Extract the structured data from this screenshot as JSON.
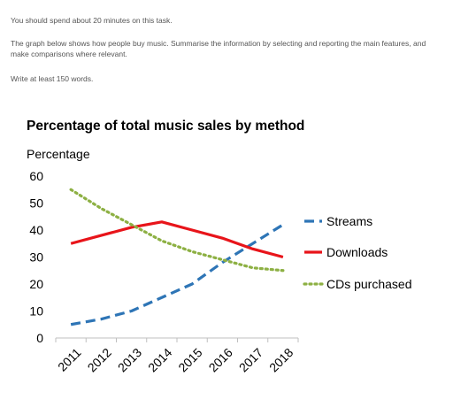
{
  "instructions": {
    "p1": "You should spend about 20 minutes on this task.",
    "p2": "The graph below shows how people buy music. Summarise the information by selecting and reporting the main features, and make comparisons where relevant.",
    "p3": "Write at least 150 words."
  },
  "chart_data": {
    "type": "line",
    "title": "Percentage of total music sales by method",
    "ylabel": "Percentage",
    "xlabel": "",
    "x": [
      "2011",
      "2012",
      "2013",
      "2014",
      "2015",
      "2016",
      "2017",
      "2018"
    ],
    "ylim": [
      0,
      60
    ],
    "yticks": [
      0,
      10,
      20,
      30,
      40,
      50,
      60
    ],
    "grid": false,
    "legend": "right",
    "series": [
      {
        "name": "Streams",
        "values": [
          5,
          7,
          10,
          15,
          20,
          28,
          35,
          42
        ],
        "color": "#2e75b6",
        "style": "dashed"
      },
      {
        "name": "Downloads",
        "values": [
          35,
          38,
          41,
          43,
          40,
          37,
          33,
          30
        ],
        "color": "#e8141a",
        "style": "solid"
      },
      {
        "name": "CDs purchased",
        "values": [
          55,
          48,
          42,
          36,
          32,
          29,
          26,
          25
        ],
        "color": "#8db043",
        "style": "dotted"
      }
    ]
  }
}
